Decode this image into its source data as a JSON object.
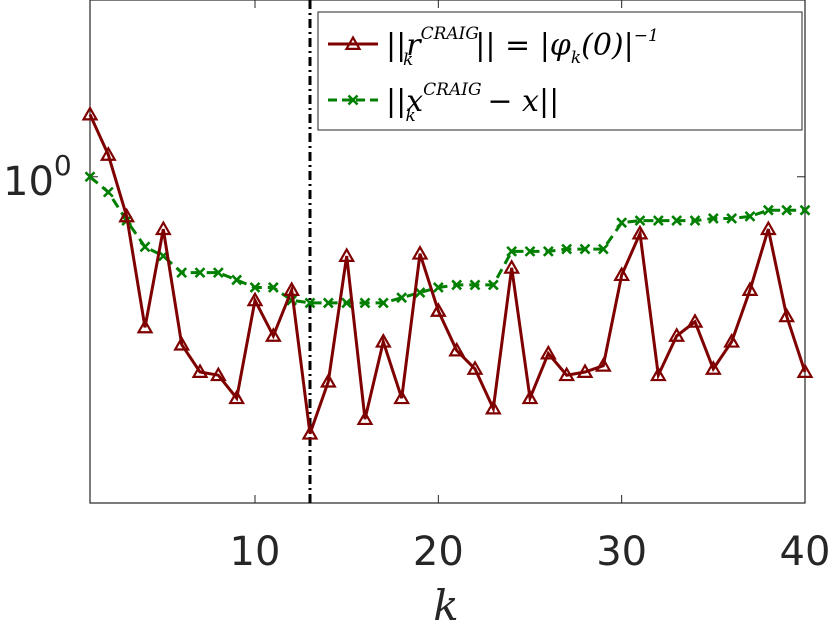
{
  "chart_data": {
    "type": "line",
    "title": "",
    "xlabel": "k",
    "ylabel": "",
    "xlim": [
      1,
      40
    ],
    "yscale": "log",
    "ylim": [
      0.42,
      1.6
    ],
    "xticks": [
      10,
      20,
      30,
      40
    ],
    "xtick_labels": [
      "10",
      "20",
      "30",
      "40"
    ],
    "yticks": [
      1.0
    ],
    "ytick_labels": [
      {
        "base": "10",
        "exp": "0"
      }
    ],
    "grid": false,
    "legend_position": "top-right",
    "vline": {
      "x": 13,
      "style": "dash-dot",
      "color": "#000000"
    },
    "series": [
      {
        "name": "||r_k^CRAIG|| = |φ_k(0)|^-1",
        "legend_parts": {
          "pre": "||r",
          "sub": "k",
          "sup": "CRAIG",
          "post": "|| = |φ",
          "sub2": "k",
          "post2": "(0)|",
          "sup2": "−1"
        },
        "color": "#7f0000",
        "marker": "triangle",
        "line": "solid",
        "x": [
          1,
          2,
          3,
          4,
          5,
          6,
          7,
          8,
          9,
          10,
          11,
          12,
          13,
          14,
          15,
          16,
          17,
          18,
          19,
          20,
          21,
          22,
          23,
          24,
          25,
          26,
          27,
          28,
          29,
          30,
          31,
          32,
          33,
          34,
          35,
          36,
          37,
          38,
          39,
          40
        ],
        "values": [
          1.18,
          1.06,
          0.9,
          0.67,
          0.87,
          0.64,
          0.595,
          0.59,
          0.555,
          0.72,
          0.655,
          0.74,
          0.505,
          0.58,
          0.81,
          0.525,
          0.645,
          0.555,
          0.815,
          0.7,
          0.63,
          0.6,
          0.54,
          0.785,
          0.555,
          0.625,
          0.59,
          0.595,
          0.605,
          0.77,
          0.86,
          0.59,
          0.655,
          0.68,
          0.6,
          0.645,
          0.74,
          0.87,
          0.69,
          0.595
        ]
      },
      {
        "name": "||x_k^CRAIG − x||",
        "legend_parts": {
          "pre": "||x",
          "sub": "k",
          "sup": "CRAIG",
          "post": " − x||"
        },
        "color": "#007f00",
        "marker": "x",
        "line": "dashed",
        "x": [
          1,
          2,
          3,
          4,
          5,
          6,
          7,
          8,
          9,
          10,
          11,
          12,
          13,
          14,
          15,
          16,
          17,
          18,
          19,
          20,
          21,
          22,
          23,
          24,
          25,
          26,
          27,
          28,
          29,
          30,
          31,
          32,
          33,
          34,
          35,
          36,
          37,
          38,
          39,
          40
        ],
        "values": [
          1.0,
          0.96,
          0.89,
          0.83,
          0.81,
          0.775,
          0.775,
          0.775,
          0.76,
          0.745,
          0.745,
          0.72,
          0.715,
          0.715,
          0.715,
          0.715,
          0.715,
          0.725,
          0.735,
          0.745,
          0.75,
          0.75,
          0.75,
          0.82,
          0.82,
          0.82,
          0.825,
          0.825,
          0.825,
          0.885,
          0.89,
          0.89,
          0.89,
          0.89,
          0.895,
          0.895,
          0.9,
          0.915,
          0.915,
          0.915
        ]
      }
    ]
  }
}
